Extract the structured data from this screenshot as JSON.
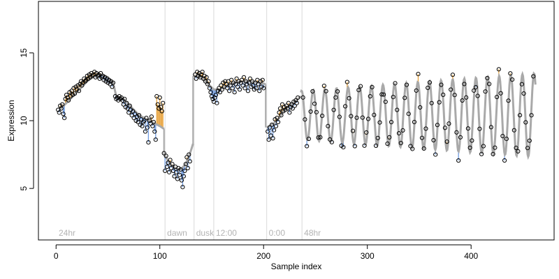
{
  "chart_data": {
    "type": "scatter",
    "title": "",
    "xlabel": "Sample index",
    "ylabel": "Expression",
    "xlim": [
      -17,
      480
    ],
    "ylim": [
      1.2,
      18.8
    ],
    "x_ticks": [
      0,
      100,
      200,
      300,
      400
    ],
    "y_ticks": [
      5,
      10,
      15
    ],
    "grid": false,
    "legend": "none",
    "colors": {
      "fit_line": "#a9a9a9",
      "residual_positive": "#e8a33d",
      "residual_negative": "#6f9be0",
      "points": "#000000",
      "section_lines": "#d9d9d9",
      "section_labels": "#b3b3b3"
    },
    "section_markers": [
      {
        "x": 105,
        "label": "dawn"
      },
      {
        "x": 133,
        "label": "dusk"
      },
      {
        "x": 152,
        "label": "12:00"
      },
      {
        "x": 203,
        "label": "0:00"
      },
      {
        "x": 237,
        "label": "48hr"
      }
    ],
    "corner_label": "24hr",
    "fitted_segments": [
      {
        "x": [
          3,
          10,
          15,
          20,
          25,
          30,
          35,
          40,
          45,
          50,
          55,
          58,
          65,
          70,
          75,
          80,
          85,
          90,
          95,
          100,
          104
        ],
        "y": [
          10.8,
          11.3,
          11.7,
          12.1,
          12.5,
          12.9,
          13.2,
          13.4,
          13.4,
          13.2,
          12.8,
          11.8,
          11.6,
          11.2,
          10.8,
          10.4,
          10.2,
          10.0,
          9.8,
          9.6,
          9.4
        ]
      },
      {
        "x": [
          104,
          106,
          110,
          115,
          120,
          125,
          130,
          132
        ],
        "y": [
          7.6,
          7.3,
          6.8,
          6.5,
          6.4,
          6.8,
          7.8,
          8.3
        ]
      },
      {
        "x": [
          133,
          138,
          143,
          148,
          152,
          158,
          165,
          172,
          180,
          188,
          195,
          202
        ],
        "y": [
          13.3,
          13.3,
          13.0,
          12.6,
          12.3,
          12.3,
          12.6,
          12.8,
          12.9,
          12.9,
          12.8,
          12.7
        ]
      },
      {
        "x": [
          203,
          210,
          215,
          220,
          225,
          230,
          236
        ],
        "y": [
          9.5,
          9.8,
          10.2,
          10.8,
          11.1,
          11.4,
          11.8
        ]
      }
    ],
    "oscillation": {
      "x_start": 236,
      "x_end": 462,
      "period": 11.2,
      "midline": 10.4,
      "amplitude_start": 1.8,
      "amplitude_end": 3.1
    },
    "points": [
      {
        "x": 2,
        "y": 10.8
      },
      {
        "x": 3,
        "y": 10.6
      },
      {
        "x": 4,
        "y": 11.1
      },
      {
        "x": 5,
        "y": 10.9
      },
      {
        "x": 6,
        "y": 11.2
      },
      {
        "x": 7,
        "y": 10.5
      },
      {
        "x": 8,
        "y": 10.2
      },
      {
        "x": 9,
        "y": 11.6
      },
      {
        "x": 10,
        "y": 11.9
      },
      {
        "x": 11,
        "y": 11.7
      },
      {
        "x": 12,
        "y": 11.5
      },
      {
        "x": 13,
        "y": 12.1
      },
      {
        "x": 14,
        "y": 11.8
      },
      {
        "x": 15,
        "y": 12.2
      },
      {
        "x": 16,
        "y": 11.9
      },
      {
        "x": 17,
        "y": 12.4
      },
      {
        "x": 18,
        "y": 12.0
      },
      {
        "x": 19,
        "y": 12.5
      },
      {
        "x": 20,
        "y": 12.3
      },
      {
        "x": 21,
        "y": 12.6
      },
      {
        "x": 22,
        "y": 12.2
      },
      {
        "x": 23,
        "y": 12.7
      },
      {
        "x": 24,
        "y": 12.9
      },
      {
        "x": 25,
        "y": 12.6
      },
      {
        "x": 26,
        "y": 12.8
      },
      {
        "x": 27,
        "y": 13.1
      },
      {
        "x": 28,
        "y": 12.9
      },
      {
        "x": 29,
        "y": 13.0
      },
      {
        "x": 30,
        "y": 13.3
      },
      {
        "x": 31,
        "y": 13.1
      },
      {
        "x": 32,
        "y": 13.4
      },
      {
        "x": 33,
        "y": 13.2
      },
      {
        "x": 34,
        "y": 13.5
      },
      {
        "x": 35,
        "y": 13.3
      },
      {
        "x": 36,
        "y": 13.4
      },
      {
        "x": 37,
        "y": 13.6
      },
      {
        "x": 38,
        "y": 13.2
      },
      {
        "x": 39,
        "y": 13.5
      },
      {
        "x": 40,
        "y": 13.3
      },
      {
        "x": 41,
        "y": 13.4
      },
      {
        "x": 42,
        "y": 13.1
      },
      {
        "x": 43,
        "y": 13.5
      },
      {
        "x": 44,
        "y": 13.2
      },
      {
        "x": 45,
        "y": 13.3
      },
      {
        "x": 46,
        "y": 13.0
      },
      {
        "x": 47,
        "y": 13.2
      },
      {
        "x": 48,
        "y": 12.9
      },
      {
        "x": 49,
        "y": 13.1
      },
      {
        "x": 50,
        "y": 12.8
      },
      {
        "x": 51,
        "y": 13.0
      },
      {
        "x": 52,
        "y": 12.7
      },
      {
        "x": 53,
        "y": 12.9
      },
      {
        "x": 54,
        "y": 12.5
      },
      {
        "x": 55,
        "y": 12.8
      },
      {
        "x": 57,
        "y": 11.8
      },
      {
        "x": 58,
        "y": 11.6
      },
      {
        "x": 59,
        "y": 11.7
      },
      {
        "x": 60,
        "y": 11.5
      },
      {
        "x": 61,
        "y": 11.8
      },
      {
        "x": 62,
        "y": 11.6
      },
      {
        "x": 63,
        "y": 11.7
      },
      {
        "x": 64,
        "y": 11.5
      },
      {
        "x": 65,
        "y": 11.2
      },
      {
        "x": 66,
        "y": 11.6
      },
      {
        "x": 67,
        "y": 11.0
      },
      {
        "x": 68,
        "y": 11.3
      },
      {
        "x": 69,
        "y": 10.9
      },
      {
        "x": 70,
        "y": 10.6
      },
      {
        "x": 71,
        "y": 11.1
      },
      {
        "x": 72,
        "y": 10.8
      },
      {
        "x": 73,
        "y": 10.4
      },
      {
        "x": 74,
        "y": 10.7
      },
      {
        "x": 75,
        "y": 10.2
      },
      {
        "x": 76,
        "y": 10.5
      },
      {
        "x": 77,
        "y": 10.0
      },
      {
        "x": 78,
        "y": 10.3
      },
      {
        "x": 79,
        "y": 9.9
      },
      {
        "x": 80,
        "y": 10.4
      },
      {
        "x": 81,
        "y": 9.7
      },
      {
        "x": 82,
        "y": 10.1
      },
      {
        "x": 83,
        "y": 9.6
      },
      {
        "x": 84,
        "y": 9.9
      },
      {
        "x": 85,
        "y": 10.0
      },
      {
        "x": 86,
        "y": 9.2
      },
      {
        "x": 87,
        "y": 10.2
      },
      {
        "x": 88,
        "y": 9.5
      },
      {
        "x": 89,
        "y": 8.4
      },
      {
        "x": 90,
        "y": 10.0
      },
      {
        "x": 91,
        "y": 9.8
      },
      {
        "x": 92,
        "y": 10.3
      },
      {
        "x": 93,
        "y": 9.6
      },
      {
        "x": 94,
        "y": 9.9
      },
      {
        "x": 95,
        "y": 9.2
      },
      {
        "x": 96,
        "y": 8.6
      },
      {
        "x": 97,
        "y": 11.8
      },
      {
        "x": 98,
        "y": 11.2
      },
      {
        "x": 99,
        "y": 10.9
      },
      {
        "x": 100,
        "y": 11.7
      },
      {
        "x": 101,
        "y": 11.0
      },
      {
        "x": 102,
        "y": 10.7
      },
      {
        "x": 103,
        "y": 11.3
      },
      {
        "x": 104,
        "y": 7.6
      },
      {
        "x": 105,
        "y": 6.3
      },
      {
        "x": 106,
        "y": 7.4
      },
      {
        "x": 107,
        "y": 6.6
      },
      {
        "x": 108,
        "y": 6.9
      },
      {
        "x": 109,
        "y": 6.2
      },
      {
        "x": 110,
        "y": 7.1
      },
      {
        "x": 111,
        "y": 6.5
      },
      {
        "x": 112,
        "y": 6.8
      },
      {
        "x": 113,
        "y": 6.3
      },
      {
        "x": 114,
        "y": 5.9
      },
      {
        "x": 115,
        "y": 6.6
      },
      {
        "x": 116,
        "y": 6.2
      },
      {
        "x": 117,
        "y": 5.7
      },
      {
        "x": 118,
        "y": 6.5
      },
      {
        "x": 119,
        "y": 6.0
      },
      {
        "x": 120,
        "y": 6.4
      },
      {
        "x": 121,
        "y": 5.6
      },
      {
        "x": 122,
        "y": 5.1
      },
      {
        "x": 123,
        "y": 5.9
      },
      {
        "x": 124,
        "y": 6.3
      },
      {
        "x": 125,
        "y": 6.8
      },
      {
        "x": 126,
        "y": 7.3
      },
      {
        "x": 127,
        "y": 6.5
      },
      {
        "x": 128,
        "y": 7.5
      },
      {
        "x": 129,
        "y": 7.0
      },
      {
        "x": 134,
        "y": 13.4
      },
      {
        "x": 135,
        "y": 13.1
      },
      {
        "x": 136,
        "y": 13.6
      },
      {
        "x": 137,
        "y": 13.3
      },
      {
        "x": 138,
        "y": 13.5
      },
      {
        "x": 139,
        "y": 13.2
      },
      {
        "x": 140,
        "y": 13.4
      },
      {
        "x": 141,
        "y": 13.6
      },
      {
        "x": 142,
        "y": 13.1
      },
      {
        "x": 143,
        "y": 13.3
      },
      {
        "x": 144,
        "y": 12.9
      },
      {
        "x": 145,
        "y": 13.2
      },
      {
        "x": 146,
        "y": 12.7
      },
      {
        "x": 147,
        "y": 12.9
      },
      {
        "x": 148,
        "y": 12.4
      },
      {
        "x": 149,
        "y": 12.1
      },
      {
        "x": 150,
        "y": 11.8
      },
      {
        "x": 151,
        "y": 11.6
      },
      {
        "x": 152,
        "y": 11.4
      },
      {
        "x": 153,
        "y": 11.7
      },
      {
        "x": 154,
        "y": 11.9
      },
      {
        "x": 155,
        "y": 11.3
      },
      {
        "x": 156,
        "y": 12.2
      },
      {
        "x": 157,
        "y": 12.4
      },
      {
        "x": 158,
        "y": 12.1
      },
      {
        "x": 159,
        "y": 12.6
      },
      {
        "x": 160,
        "y": 12.3
      },
      {
        "x": 161,
        "y": 12.8
      },
      {
        "x": 162,
        "y": 12.5
      },
      {
        "x": 163,
        "y": 12.9
      },
      {
        "x": 164,
        "y": 12.7
      },
      {
        "x": 165,
        "y": 12.4
      },
      {
        "x": 166,
        "y": 12.9
      },
      {
        "x": 167,
        "y": 12.2
      },
      {
        "x": 168,
        "y": 12.6
      },
      {
        "x": 169,
        "y": 13.0
      },
      {
        "x": 170,
        "y": 12.4
      },
      {
        "x": 171,
        "y": 12.8
      },
      {
        "x": 172,
        "y": 12.1
      },
      {
        "x": 173,
        "y": 12.7
      },
      {
        "x": 174,
        "y": 13.1
      },
      {
        "x": 175,
        "y": 12.5
      },
      {
        "x": 176,
        "y": 12.9
      },
      {
        "x": 177,
        "y": 12.3
      },
      {
        "x": 178,
        "y": 12.8
      },
      {
        "x": 179,
        "y": 13.0
      },
      {
        "x": 180,
        "y": 12.6
      },
      {
        "x": 181,
        "y": 13.2
      },
      {
        "x": 182,
        "y": 12.4
      },
      {
        "x": 183,
        "y": 12.9
      },
      {
        "x": 184,
        "y": 12.7
      },
      {
        "x": 185,
        "y": 12.2
      },
      {
        "x": 186,
        "y": 12.8
      },
      {
        "x": 187,
        "y": 13.1
      },
      {
        "x": 188,
        "y": 12.5
      },
      {
        "x": 189,
        "y": 12.9
      },
      {
        "x": 190,
        "y": 12.6
      },
      {
        "x": 191,
        "y": 12.3
      },
      {
        "x": 192,
        "y": 12.8
      },
      {
        "x": 193,
        "y": 12.4
      },
      {
        "x": 194,
        "y": 13.0
      },
      {
        "x": 195,
        "y": 12.7
      },
      {
        "x": 196,
        "y": 12.2
      },
      {
        "x": 197,
        "y": 12.9
      },
      {
        "x": 198,
        "y": 12.5
      },
      {
        "x": 199,
        "y": 13.0
      },
      {
        "x": 200,
        "y": 12.4
      },
      {
        "x": 204,
        "y": 9.2
      },
      {
        "x": 205,
        "y": 8.6
      },
      {
        "x": 206,
        "y": 9.5
      },
      {
        "x": 207,
        "y": 8.9
      },
      {
        "x": 208,
        "y": 9.7
      },
      {
        "x": 209,
        "y": 8.7
      },
      {
        "x": 210,
        "y": 9.3
      },
      {
        "x": 211,
        "y": 10.1
      },
      {
        "x": 212,
        "y": 9.6
      },
      {
        "x": 213,
        "y": 10.2
      },
      {
        "x": 214,
        "y": 9.9
      },
      {
        "x": 215,
        "y": 10.6
      },
      {
        "x": 216,
        "y": 10.9
      },
      {
        "x": 217,
        "y": 10.4
      },
      {
        "x": 218,
        "y": 11.2
      },
      {
        "x": 219,
        "y": 10.7
      },
      {
        "x": 220,
        "y": 11.0
      },
      {
        "x": 221,
        "y": 10.8
      },
      {
        "x": 222,
        "y": 11.1
      },
      {
        "x": 223,
        "y": 10.9
      },
      {
        "x": 224,
        "y": 11.3
      },
      {
        "x": 225,
        "y": 10.6
      },
      {
        "x": 226,
        "y": 11.0
      },
      {
        "x": 227,
        "y": 11.2
      },
      {
        "x": 228,
        "y": 10.9
      },
      {
        "x": 229,
        "y": 11.4
      },
      {
        "x": 230,
        "y": 11.1
      },
      {
        "x": 231,
        "y": 11.5
      },
      {
        "x": 232,
        "y": 11.3
      },
      {
        "x": 233,
        "y": 11.7
      }
    ]
  }
}
